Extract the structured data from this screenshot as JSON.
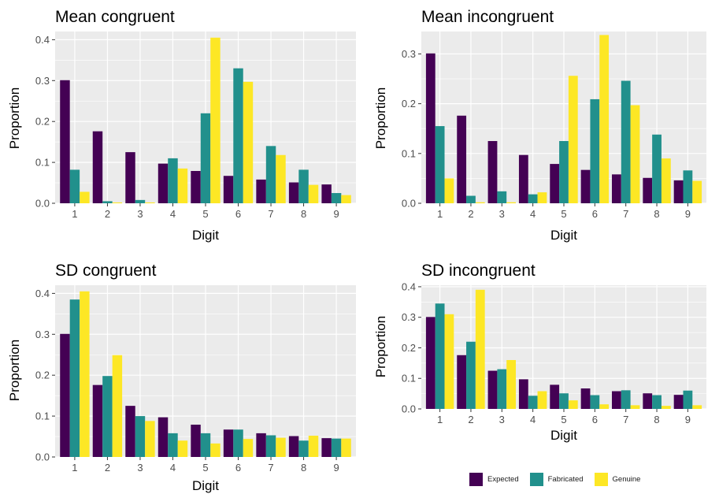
{
  "colors": {
    "panel_bg": "#EBEBEB",
    "grid": "#FFFFFF",
    "axis_text": "#4D4D4D",
    "label_text": "#000000",
    "expected": "#440154",
    "fabricated": "#21908C",
    "genuine": "#FDE725"
  },
  "legend": {
    "items": [
      {
        "label": "Expected",
        "color": "#440154"
      },
      {
        "label": "Fabricated",
        "color": "#21908C"
      },
      {
        "label": "Genuine",
        "color": "#FDE725"
      }
    ]
  },
  "chart_data": [
    {
      "type": "bar",
      "title": "Mean congruent",
      "xlabel": "Digit",
      "ylabel": "Proportion",
      "categories": [
        "1",
        "2",
        "3",
        "4",
        "5",
        "6",
        "7",
        "8",
        "9"
      ],
      "ylim": [
        0,
        0.42
      ],
      "yticks": [
        0.0,
        0.1,
        0.2,
        0.3,
        0.4
      ],
      "ytick_labels": [
        "0.0",
        "0.1",
        "0.2",
        "0.3",
        "0.4"
      ],
      "series": [
        {
          "name": "Expected",
          "values": [
            0.301,
            0.176,
            0.125,
            0.097,
            0.079,
            0.067,
            0.058,
            0.051,
            0.046
          ]
        },
        {
          "name": "Fabricated",
          "values": [
            0.082,
            0.005,
            0.008,
            0.11,
            0.22,
            0.33,
            0.14,
            0.082,
            0.025
          ]
        },
        {
          "name": "Genuine",
          "values": [
            0.028,
            0.002,
            0.002,
            0.085,
            0.405,
            0.297,
            0.118,
            0.045,
            0.02
          ]
        }
      ]
    },
    {
      "type": "bar",
      "title": "Mean incongruent",
      "xlabel": "Digit",
      "ylabel": "Proportion",
      "categories": [
        "1",
        "2",
        "3",
        "4",
        "5",
        "6",
        "7",
        "8",
        "9"
      ],
      "ylim": [
        0,
        0.345
      ],
      "yticks": [
        0.0,
        0.1,
        0.2,
        0.3
      ],
      "ytick_labels": [
        "0.0",
        "0.1",
        "0.2",
        "0.3"
      ],
      "series": [
        {
          "name": "Expected",
          "values": [
            0.301,
            0.176,
            0.125,
            0.097,
            0.079,
            0.067,
            0.058,
            0.051,
            0.046
          ]
        },
        {
          "name": "Fabricated",
          "values": [
            0.155,
            0.015,
            0.024,
            0.018,
            0.125,
            0.209,
            0.246,
            0.138,
            0.066
          ]
        },
        {
          "name": "Genuine",
          "values": [
            0.05,
            0.002,
            0.002,
            0.022,
            0.256,
            0.338,
            0.197,
            0.09,
            0.045
          ]
        }
      ]
    },
    {
      "type": "bar",
      "title": "SD congruent",
      "xlabel": "Digit",
      "ylabel": "Proportion",
      "categories": [
        "1",
        "2",
        "3",
        "4",
        "5",
        "6",
        "7",
        "8",
        "9"
      ],
      "ylim": [
        0,
        0.42
      ],
      "yticks": [
        0.0,
        0.1,
        0.2,
        0.3,
        0.4
      ],
      "ytick_labels": [
        "0.0",
        "0.1",
        "0.2",
        "0.3",
        "0.4"
      ],
      "series": [
        {
          "name": "Expected",
          "values": [
            0.301,
            0.176,
            0.125,
            0.097,
            0.079,
            0.067,
            0.058,
            0.051,
            0.046
          ]
        },
        {
          "name": "Fabricated",
          "values": [
            0.385,
            0.198,
            0.1,
            0.058,
            0.058,
            0.067,
            0.053,
            0.04,
            0.045
          ]
        },
        {
          "name": "Genuine",
          "values": [
            0.405,
            0.249,
            0.088,
            0.04,
            0.033,
            0.044,
            0.047,
            0.052,
            0.045
          ]
        }
      ]
    },
    {
      "type": "bar",
      "title": "SD incongruent",
      "xlabel": "Digit",
      "ylabel": "Proportion",
      "categories": [
        "1",
        "2",
        "3",
        "4",
        "5",
        "6",
        "7",
        "8",
        "9"
      ],
      "ylim": [
        0,
        0.405
      ],
      "yticks": [
        0.0,
        0.1,
        0.2,
        0.3,
        0.4
      ],
      "ytick_labels": [
        "0.0",
        "0.1",
        "0.2",
        "0.3",
        "0.4"
      ],
      "series": [
        {
          "name": "Expected",
          "values": [
            0.301,
            0.176,
            0.125,
            0.097,
            0.079,
            0.067,
            0.058,
            0.051,
            0.046
          ]
        },
        {
          "name": "Fabricated",
          "values": [
            0.345,
            0.22,
            0.13,
            0.043,
            0.051,
            0.045,
            0.061,
            0.045,
            0.06
          ]
        },
        {
          "name": "Genuine",
          "values": [
            0.31,
            0.39,
            0.16,
            0.058,
            0.028,
            0.015,
            0.012,
            0.01,
            0.012
          ]
        }
      ]
    }
  ]
}
